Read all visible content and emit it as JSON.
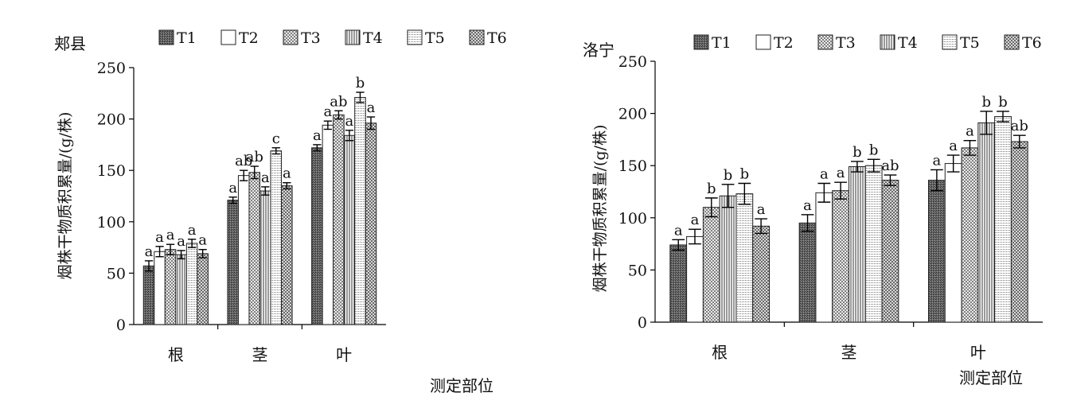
{
  "chart_data": [
    {
      "type": "bar",
      "title": "郏县",
      "xlabel": "测定部位",
      "ylabel": "烟株干物质积累量/(g/株)",
      "ylim": [
        0,
        250
      ],
      "yticks": [
        0,
        50,
        100,
        150,
        200,
        250
      ],
      "categories": [
        "根",
        "茎",
        "叶"
      ],
      "legend_position": "top",
      "grid": false,
      "series": [
        {
          "name": "T1",
          "values": [
            57,
            121,
            172
          ],
          "errors": [
            5,
            3,
            3
          ],
          "labels": [
            "a",
            "a",
            "a"
          ]
        },
        {
          "name": "T2",
          "values": [
            71,
            145,
            194
          ],
          "errors": [
            5,
            5,
            4
          ],
          "labels": [
            "a",
            "ab",
            "a"
          ]
        },
        {
          "name": "T3",
          "values": [
            73,
            148,
            204
          ],
          "errors": [
            5,
            6,
            4
          ],
          "labels": [
            "a",
            "ab",
            "ab"
          ]
        },
        {
          "name": "T4",
          "values": [
            68,
            130,
            184
          ],
          "errors": [
            4,
            4,
            5
          ],
          "labels": [
            "a",
            "a",
            "a"
          ]
        },
        {
          "name": "T5",
          "values": [
            79,
            169,
            221
          ],
          "errors": [
            4,
            3,
            5
          ],
          "labels": [
            "a",
            "c",
            "b"
          ]
        },
        {
          "name": "T6",
          "values": [
            69,
            135,
            196
          ],
          "errors": [
            4,
            3,
            6
          ],
          "labels": [
            "a",
            "a",
            "a"
          ]
        }
      ]
    },
    {
      "type": "bar",
      "title": "洛宁",
      "xlabel": "测定部位",
      "ylabel": "烟株干物质积累量/(g/株)",
      "ylim": [
        0,
        250
      ],
      "yticks": [
        0,
        50,
        100,
        150,
        200,
        250
      ],
      "categories": [
        "根",
        "茎",
        "叶"
      ],
      "legend_position": "top",
      "grid": false,
      "series": [
        {
          "name": "T1",
          "values": [
            74,
            95,
            136
          ],
          "errors": [
            5,
            8,
            10
          ],
          "labels": [
            "a",
            "a",
            "a"
          ]
        },
        {
          "name": "T2",
          "values": [
            82,
            124,
            152
          ],
          "errors": [
            7,
            9,
            8
          ],
          "labels": [
            "a",
            "a",
            "a"
          ]
        },
        {
          "name": "T3",
          "values": [
            110,
            126,
            167
          ],
          "errors": [
            9,
            8,
            7
          ],
          "labels": [
            "b",
            "a",
            "a"
          ]
        },
        {
          "name": "T4",
          "values": [
            121,
            149,
            191
          ],
          "errors": [
            11,
            5,
            11
          ],
          "labels": [
            "b",
            "b",
            "b"
          ]
        },
        {
          "name": "T5",
          "values": [
            123,
            150,
            197
          ],
          "errors": [
            10,
            6,
            5
          ],
          "labels": [
            "b",
            "b",
            "b"
          ]
        },
        {
          "name": "T6",
          "values": [
            92,
            136,
            173
          ],
          "errors": [
            7,
            5,
            6
          ],
          "labels": [
            "a",
            "ab",
            "ab"
          ]
        }
      ]
    }
  ],
  "colors": {
    "axis": "#000000",
    "bar_stroke": "#222222",
    "t1_fill": "#5a5a5a",
    "background": "#ffffff"
  },
  "patterns": [
    "dense-dark",
    "blank",
    "cross-hatch",
    "vertical-lines",
    "horizontal-dots",
    "checker"
  ]
}
